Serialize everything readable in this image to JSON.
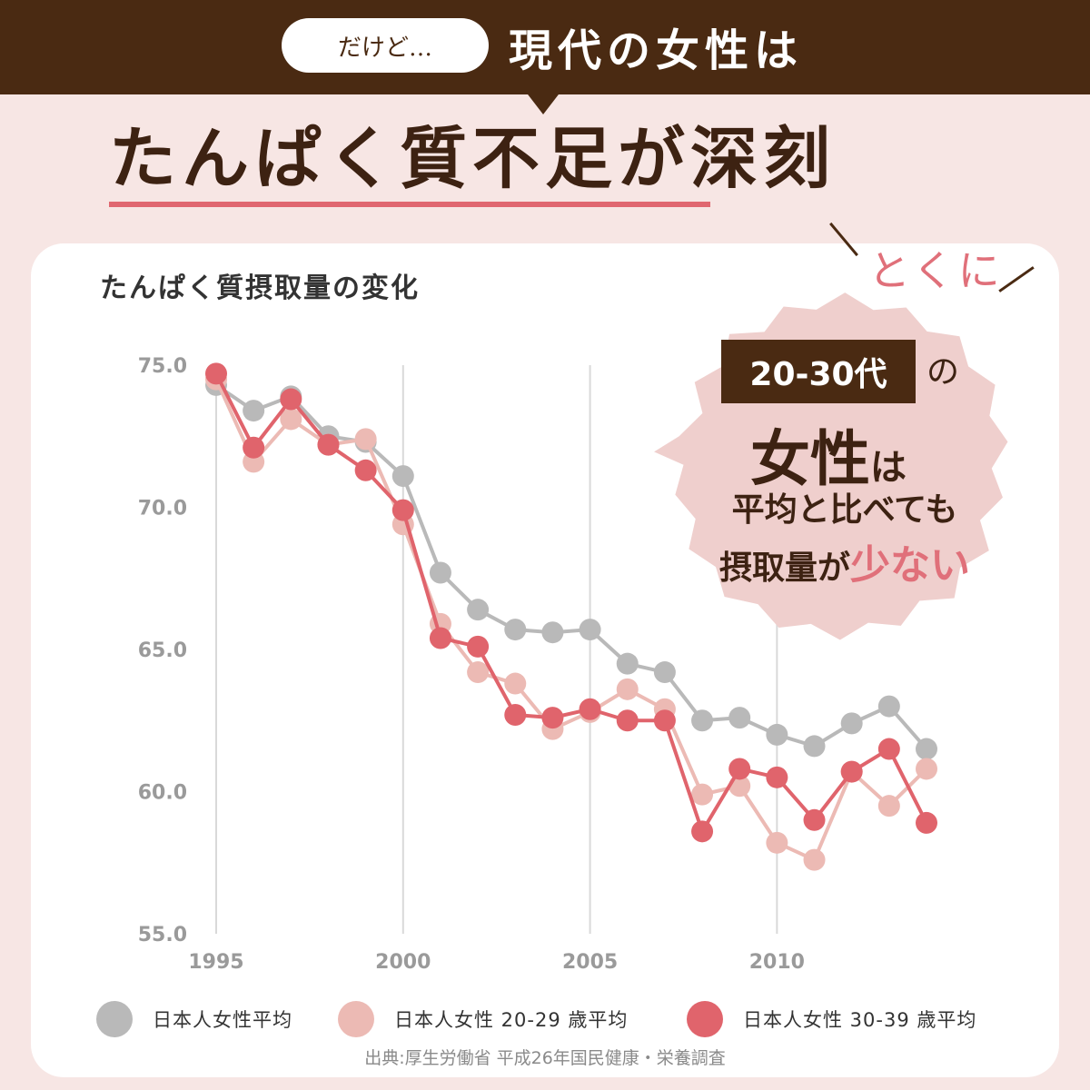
{
  "banner": {
    "pill_text": "だけど…",
    "title": "現代の女性は"
  },
  "headline": {
    "main": "たんぱく質不足",
    "suffix": "が深刻"
  },
  "badge": {
    "tokuni": "とくに",
    "age": "20-30代",
    "no": "の",
    "josei": "女性",
    "ha": "は",
    "line1": "平均と比べても",
    "line2_prefix": "摂取量が",
    "line2_accent": "少ない"
  },
  "legend": [
    {
      "label": "日本人女性平均",
      "color": "#b9b9b9"
    },
    {
      "label": "日本人女性 20-29 歳平均",
      "color": "#ecbab4"
    },
    {
      "label": "日本人女性 30-39 歳平均",
      "color": "#e0646c"
    }
  ],
  "source": "出典:厚生労働省 平成26年国民健康・栄養調査",
  "chart_data": {
    "type": "line",
    "title": "たんぱく質摂取量の変化",
    "x": [
      1995,
      1996,
      1997,
      1998,
      1999,
      2000,
      2001,
      2002,
      2003,
      2004,
      2005,
      2006,
      2007,
      2008,
      2009,
      2010,
      2011,
      2012,
      2013,
      2014
    ],
    "xticks": [
      "1995",
      "2000",
      "2005",
      "2010"
    ],
    "yticks": [
      "55.0",
      "60.0",
      "65.0",
      "70.0",
      "75.0"
    ],
    "ylim": [
      55,
      75
    ],
    "xlim": [
      1995,
      2014
    ],
    "grid": "vertical at tick years",
    "series": [
      {
        "name": "日本人女性平均",
        "color": "#b9b9b9",
        "values": [
          74.3,
          73.4,
          73.9,
          72.5,
          72.3,
          71.1,
          67.7,
          66.4,
          65.7,
          65.6,
          65.7,
          64.5,
          64.2,
          62.5,
          62.6,
          62.0,
          61.6,
          62.4,
          63.0,
          61.5
        ]
      },
      {
        "name": "日本人女性 20-29 歳平均",
        "color": "#ecbab4",
        "values": [
          74.5,
          71.6,
          73.1,
          72.2,
          72.4,
          69.4,
          65.9,
          64.2,
          63.8,
          62.2,
          62.8,
          63.6,
          62.9,
          59.9,
          60.2,
          58.2,
          57.6,
          60.7,
          59.5,
          60.8
        ]
      },
      {
        "name": "日本人女性 30-39 歳平均",
        "color": "#e0646c",
        "values": [
          74.7,
          72.1,
          73.8,
          72.2,
          71.3,
          69.9,
          65.4,
          65.1,
          62.7,
          62.6,
          62.9,
          62.5,
          62.5,
          58.6,
          60.8,
          60.5,
          59.0,
          60.7,
          61.5,
          58.9
        ]
      }
    ]
  }
}
